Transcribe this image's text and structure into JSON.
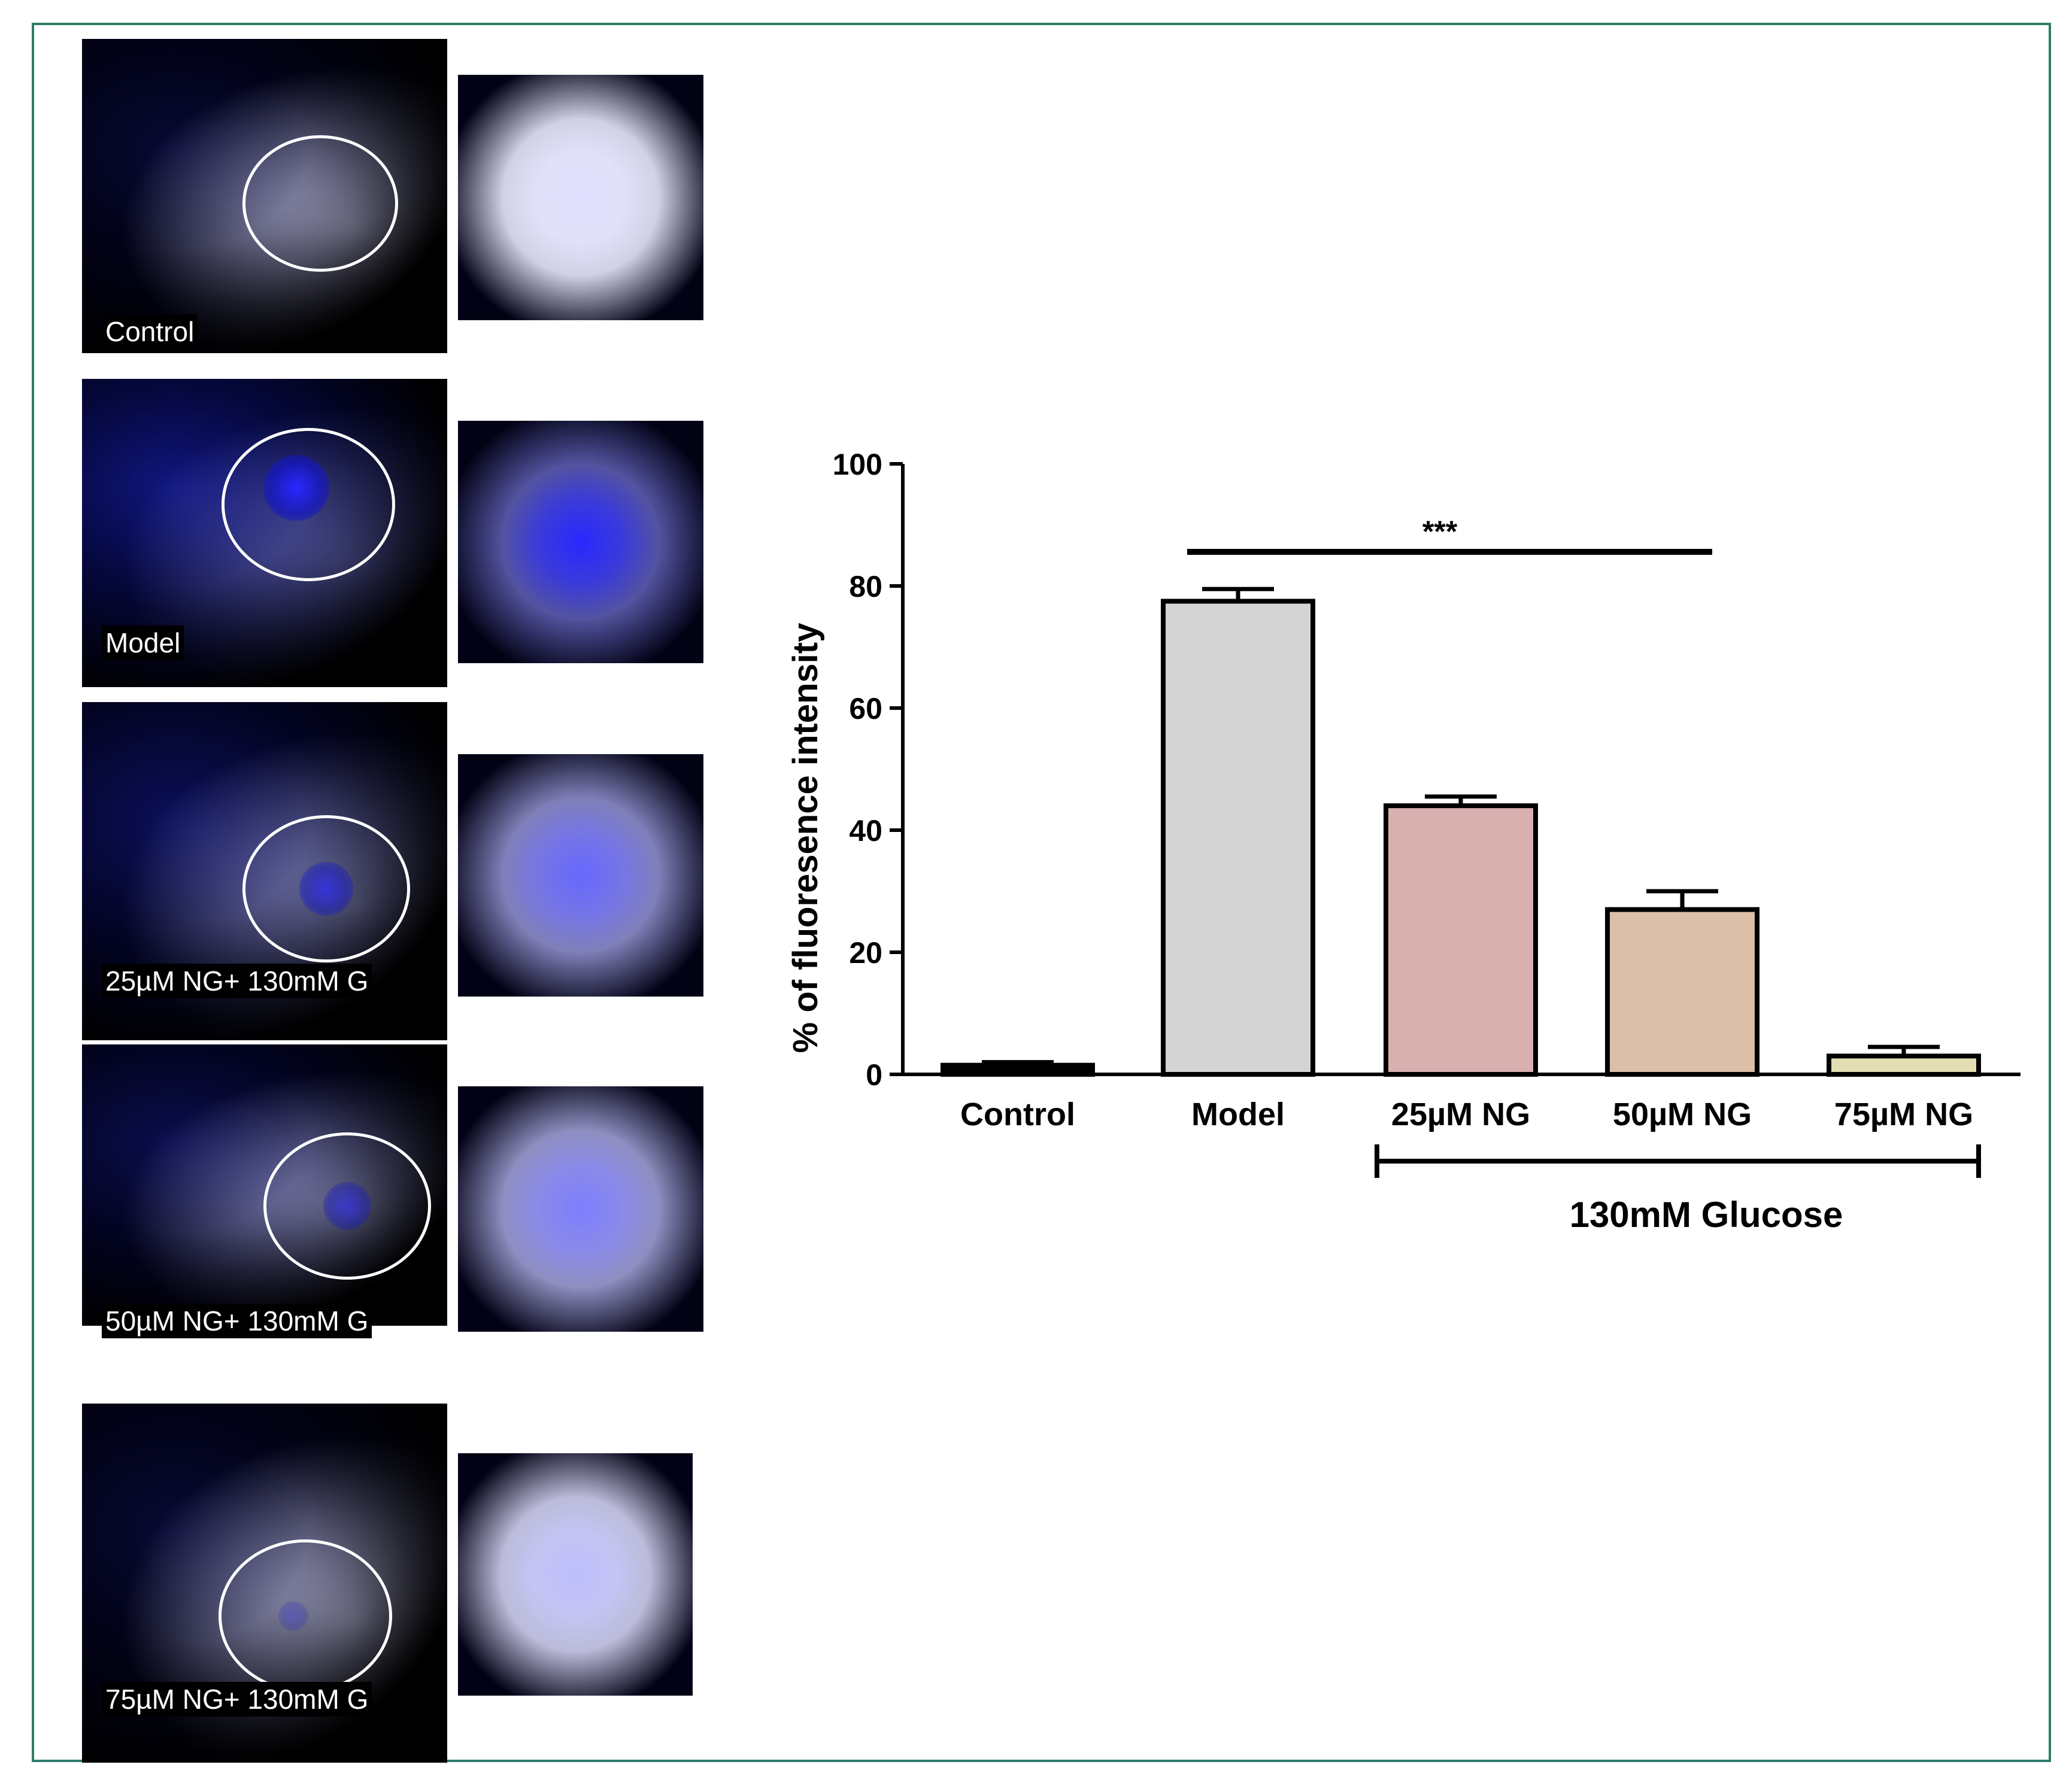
{
  "image_panels": [
    {
      "label": "Control"
    },
    {
      "label": "Model"
    },
    {
      "label": "25µM NG+ 130mM G"
    },
    {
      "label": "50µM NG+ 130mM G"
    },
    {
      "label": "75µM NG+ 130mM G"
    }
  ],
  "chart_data": {
    "type": "bar",
    "categories": [
      "Control",
      "Model",
      "25µM NG",
      "50µM NG",
      "75µM NG"
    ],
    "values": [
      1.5,
      77.5,
      44,
      27,
      3
    ],
    "errors": [
      0.5,
      2.0,
      1.5,
      3.0,
      1.5
    ],
    "bar_colors": [
      "#000000",
      "#d4d4d4",
      "#d8b0b0",
      "#dbbfa9",
      "#e2ddb3"
    ],
    "xlabel": "",
    "ylabel": "% of fluoresence intensity",
    "ylim": [
      0,
      100
    ],
    "yticks": [
      0,
      20,
      40,
      60,
      80,
      100
    ],
    "significance": {
      "label": "***",
      "from": "Model",
      "to": "50µM NG"
    },
    "group_bracket": {
      "label": "130mM Glucose",
      "from": "25µM NG",
      "to": "75µM NG"
    },
    "grid": false
  }
}
